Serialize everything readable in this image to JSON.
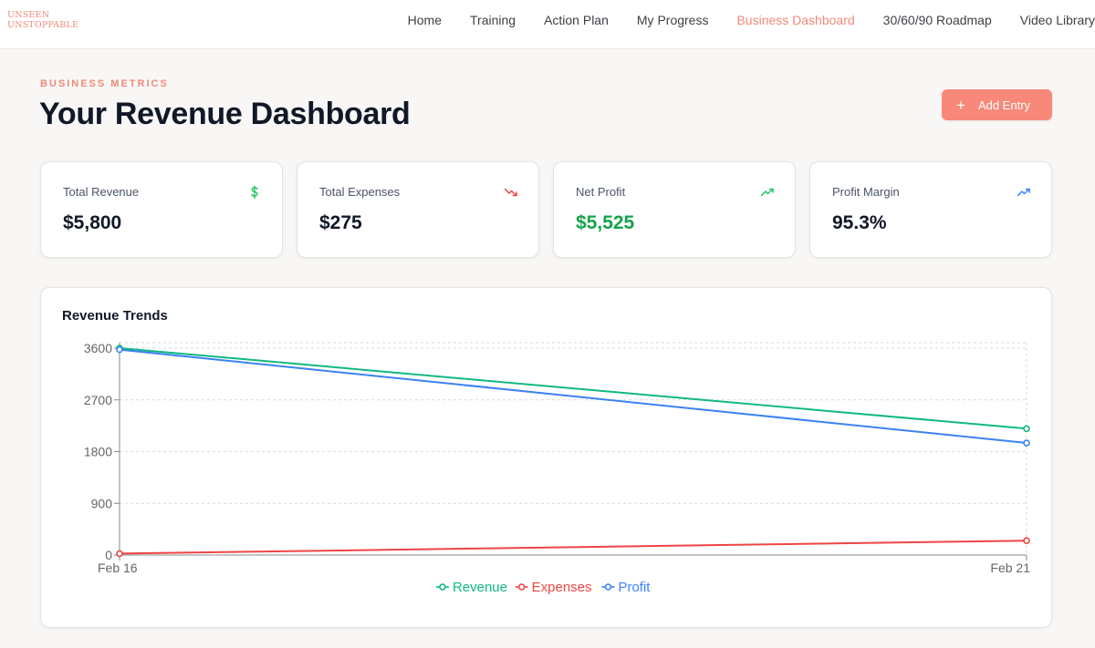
{
  "brand": {
    "line1": "UNSEEN",
    "line2": "UNSTOPPABLE"
  },
  "nav": {
    "items": [
      {
        "label": "Home",
        "active": false
      },
      {
        "label": "Training",
        "active": false
      },
      {
        "label": "Action Plan",
        "active": false
      },
      {
        "label": "My Progress",
        "active": false
      },
      {
        "label": "Business Dashboard",
        "active": true
      },
      {
        "label": "30/60/90 Roadmap",
        "active": false
      },
      {
        "label": "Video Library",
        "active": false
      }
    ]
  },
  "header": {
    "eyebrow": "BUSINESS METRICS",
    "title": "Your Revenue Dashboard",
    "add_button": "Add Entry"
  },
  "stats": [
    {
      "label": "Total Revenue",
      "value": "$5,800",
      "icon": "dollar-icon",
      "icon_color": "#22c55e",
      "value_color": "#111827"
    },
    {
      "label": "Total Expenses",
      "value": "$275",
      "icon": "trending-down-icon",
      "icon_color": "#ef4444",
      "value_color": "#111827"
    },
    {
      "label": "Net Profit",
      "value": "$5,525",
      "icon": "trending-up-icon",
      "icon_color": "#22c55e",
      "value_color": "#16a34a"
    },
    {
      "label": "Profit Margin",
      "value": "95.3%",
      "icon": "trending-up-icon",
      "icon_color": "#3b82f6",
      "value_color": "#111827"
    }
  ],
  "chart": {
    "title": "Revenue Trends"
  },
  "chart_data": {
    "type": "line",
    "x": [
      "Feb 16",
      "Feb 21"
    ],
    "ylim": [
      0,
      3600
    ],
    "yticks": [
      0,
      900,
      1800,
      2700,
      3600
    ],
    "grid": true,
    "legend_position": "bottom",
    "series": [
      {
        "name": "Revenue",
        "color": "#10b981",
        "values": [
          3600,
          2200
        ]
      },
      {
        "name": "Expenses",
        "color": "#ef4444",
        "values": [
          25,
          250
        ]
      },
      {
        "name": "Profit",
        "color": "#3b82f6",
        "values": [
          3575,
          1950
        ]
      }
    ]
  },
  "colors": {
    "accent": "#f08a7a",
    "background": "#f8f7f5"
  }
}
